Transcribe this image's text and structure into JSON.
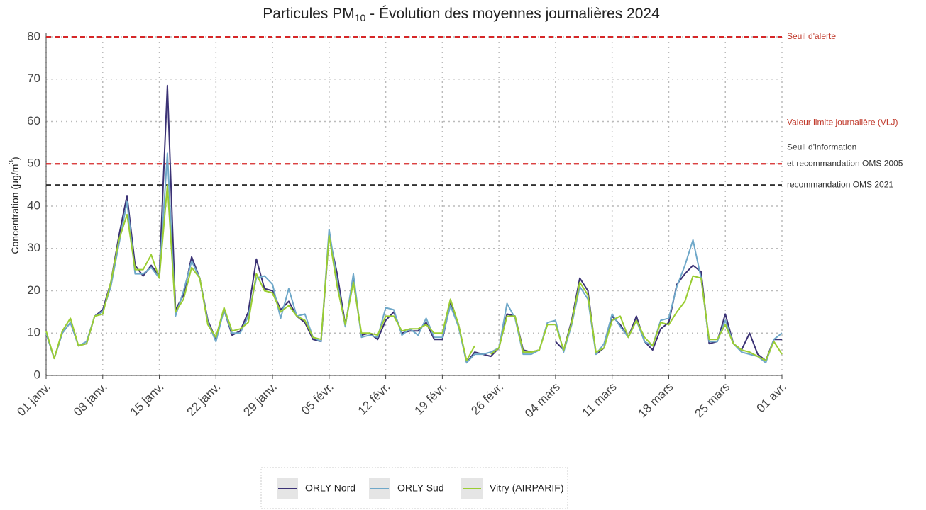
{
  "chart_data": {
    "type": "line",
    "title": {
      "text": "Particules PM",
      "sub": "10",
      "rest": " - Évolution des moyennes journalières 2024"
    },
    "ylabel": {
      "text": "Concentration (µg/m",
      "sup": "3",
      "end": ")"
    },
    "ylim": [
      0,
      80
    ],
    "yticks": [
      0,
      10,
      20,
      30,
      40,
      50,
      60,
      70,
      80
    ],
    "grid": true,
    "legend": "bottom",
    "categories": [
      "01 janv.",
      null,
      null,
      null,
      null,
      null,
      null,
      "08 janv.",
      null,
      null,
      null,
      null,
      null,
      null,
      "15 janv.",
      null,
      null,
      null,
      null,
      null,
      null,
      "22 janv.",
      null,
      null,
      null,
      null,
      null,
      null,
      "29 janv.",
      null,
      null,
      null,
      null,
      null,
      null,
      "05 févr.",
      null,
      null,
      null,
      null,
      null,
      null,
      "12 févr.",
      null,
      null,
      null,
      null,
      null,
      null,
      "19 févr.",
      null,
      null,
      null,
      null,
      null,
      null,
      "26 févr.",
      null,
      null,
      null,
      null,
      null,
      null,
      "04 mars",
      null,
      null,
      null,
      null,
      null,
      null,
      "11 mars",
      null,
      null,
      null,
      null,
      null,
      null,
      "18 mars",
      null,
      null,
      null,
      null,
      null,
      null,
      "25 mars",
      null,
      null,
      null,
      null,
      null,
      null,
      "01 avr."
    ],
    "series": [
      {
        "name": "ORLY Nord",
        "color": "#3b3275",
        "values": [
          10,
          4,
          10,
          12.5,
          7,
          7.5,
          14,
          15.5,
          22,
          33,
          42.5,
          26,
          23.5,
          26,
          23.5,
          68.5,
          15.5,
          19,
          28,
          23,
          13,
          8.5,
          15.5,
          9.5,
          10.5,
          15,
          27.5,
          20.5,
          20,
          15.5,
          17.5,
          14,
          12.5,
          8.5,
          8,
          33,
          24,
          12,
          22.5,
          9.5,
          10,
          8.5,
          13,
          15,
          10,
          10.5,
          10.5,
          12.5,
          8.5,
          8.5,
          17,
          12,
          3,
          5.5,
          5,
          4.5,
          6.5,
          14.5,
          14,
          6,
          5.5,
          6,
          null,
          8,
          6,
          13,
          23,
          20,
          5,
          6.5,
          14,
          12,
          9,
          14,
          8,
          6,
          11,
          12.5,
          21.5,
          24,
          26,
          24.5,
          7.5,
          8,
          14.5,
          7.5,
          6,
          10,
          5,
          3.5,
          8.5,
          8.5
        ]
      },
      {
        "name": "ORLY Sud",
        "color": "#6fa8c9",
        "values": [
          10,
          4,
          10,
          12.5,
          7,
          8,
          14,
          15,
          21,
          31,
          41,
          24,
          24,
          25.5,
          23,
          52.5,
          14,
          20,
          27,
          23,
          12.5,
          8,
          15.5,
          10,
          10,
          14,
          23,
          23.5,
          21.5,
          13.5,
          20.5,
          14,
          14.5,
          9,
          8,
          34.5,
          22,
          11.5,
          24,
          9,
          9.5,
          9,
          16,
          15.5,
          9.5,
          11,
          9.5,
          13.5,
          9,
          9,
          16.5,
          11.5,
          3,
          5,
          5,
          5.5,
          6.5,
          17,
          13.5,
          5,
          5,
          6,
          12.5,
          13,
          5.5,
          12,
          21,
          18,
          5,
          7.5,
          14.5,
          11.5,
          9,
          13,
          8,
          7,
          13,
          13.5,
          21,
          26,
          32,
          23,
          8,
          8,
          13,
          7.5,
          5.5,
          5,
          4.5,
          3,
          8.5,
          10
        ]
      },
      {
        "name": "Vitry (AIRPARIF)",
        "color": "#9acd32",
        "values": [
          10.5,
          4,
          10.5,
          13.5,
          7,
          7.5,
          14,
          14.5,
          22,
          32,
          38,
          25,
          25,
          28.5,
          23,
          45,
          15,
          18,
          25.5,
          23,
          12,
          9,
          16,
          10.5,
          11,
          12.5,
          24,
          20,
          19.5,
          15,
          16.5,
          14,
          13,
          9,
          8.5,
          33,
          21,
          12,
          22,
          10,
          10,
          9.5,
          14,
          14,
          10.5,
          11,
          11,
          12,
          10,
          10,
          18,
          12,
          3.5,
          7,
          null,
          5,
          6.5,
          14,
          14,
          5.5,
          5.5,
          6,
          12,
          12,
          6,
          12.5,
          22,
          19,
          5.5,
          6.5,
          13,
          14,
          9,
          13,
          9,
          7,
          12.5,
          12,
          15,
          17.5,
          23.5,
          23,
          8.5,
          8.5,
          12,
          7.5,
          6,
          5.5,
          4.5,
          3.5,
          8,
          5
        ]
      }
    ],
    "reference_lines": [
      {
        "value": 80,
        "color": "#d62728",
        "labels": [
          "Seuil d'alerte"
        ],
        "label_color": "#c0392b"
      },
      {
        "value": 50,
        "color": "#d62728",
        "labels": [
          "Valeur limite journalière (VLJ)"
        ],
        "label_color": "#c0392b"
      },
      {
        "value": 50,
        "color": "#d62728",
        "labels": [
          "Seuil d'information",
          "et recommandation OMS 2005"
        ],
        "label_color": "#333333"
      },
      {
        "value": 45,
        "color": "#333333",
        "labels": [
          "recommandation OMS 2021"
        ],
        "label_color": "#333333"
      }
    ]
  }
}
